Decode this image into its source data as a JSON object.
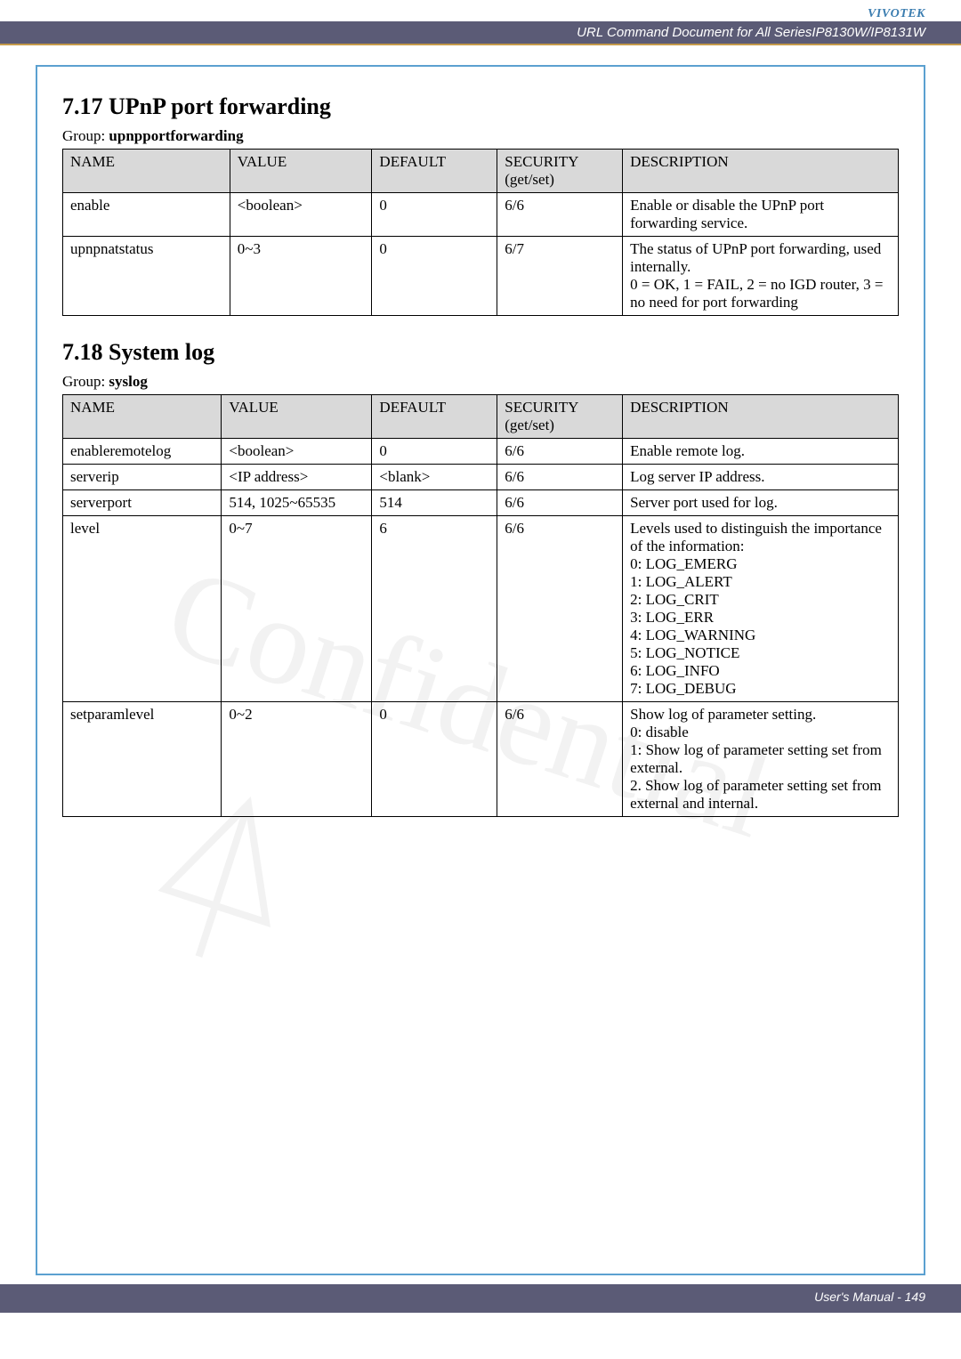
{
  "brand": "VIVOTEK",
  "doc_header": "URL Command Document for All SeriesIP8130W/IP8131W",
  "section1": {
    "heading": "7.17 UPnP port forwarding",
    "group_label": "Group: ",
    "group_name": "upnpportforwarding",
    "columns": [
      "NAME",
      "VALUE",
      "DEFAULT",
      "SECURITY (get/set)",
      "DESCRIPTION"
    ],
    "rows": [
      {
        "name": "enable",
        "value": "<boolean>",
        "default": "0",
        "security": "6/6",
        "desc": "Enable or disable the UPnP port forwarding service."
      },
      {
        "name": "upnpnatstatus",
        "value": "0~3",
        "default": "0",
        "security": "6/7",
        "desc": "The status of UPnP port forwarding, used internally.\n0 = OK, 1 = FAIL, 2 = no IGD router, 3 = no need for port forwarding"
      }
    ]
  },
  "section2": {
    "heading": "7.18 System log",
    "group_label": "Group: ",
    "group_name": "syslog",
    "columns": [
      "NAME",
      "VALUE",
      "DEFAULT",
      "SECURITY (get/set)",
      "DESCRIPTION"
    ],
    "rows": [
      {
        "name": "enableremotelog",
        "value": "<boolean>",
        "default": "0",
        "security": "6/6",
        "desc": "Enable remote log."
      },
      {
        "name": "serverip",
        "value": "<IP address>",
        "default": "<blank>",
        "security": "6/6",
        "desc": "Log server IP address."
      },
      {
        "name": "serverport",
        "value": "514, 1025~65535",
        "default": "514",
        "security": "6/6",
        "desc": "Server port used for log."
      },
      {
        "name": "level",
        "value": "0~7",
        "default": "6",
        "security": "6/6",
        "desc": "Levels used to distinguish the importance of the information:\n0: LOG_EMERG\n1: LOG_ALERT\n2: LOG_CRIT\n3: LOG_ERR\n4: LOG_WARNING\n5: LOG_NOTICE\n6: LOG_INFO\n7: LOG_DEBUG"
      },
      {
        "name": "setparamlevel",
        "value": "0~2",
        "default": "0",
        "security": "6/6",
        "desc": "Show log of parameter setting.\n0: disable\n1: Show log of parameter setting set from external.\n2. Show log of parameter setting set from external and internal."
      }
    ]
  },
  "footer": "User's Manual - 149",
  "styling": {
    "header_bg": "#d9d9d9",
    "border_color": "#000000",
    "frame_border": "#5ba0d0",
    "brand_color": "#3b7db0",
    "docbar_bg": "#5b5b76",
    "accent": "#c59a4a"
  }
}
